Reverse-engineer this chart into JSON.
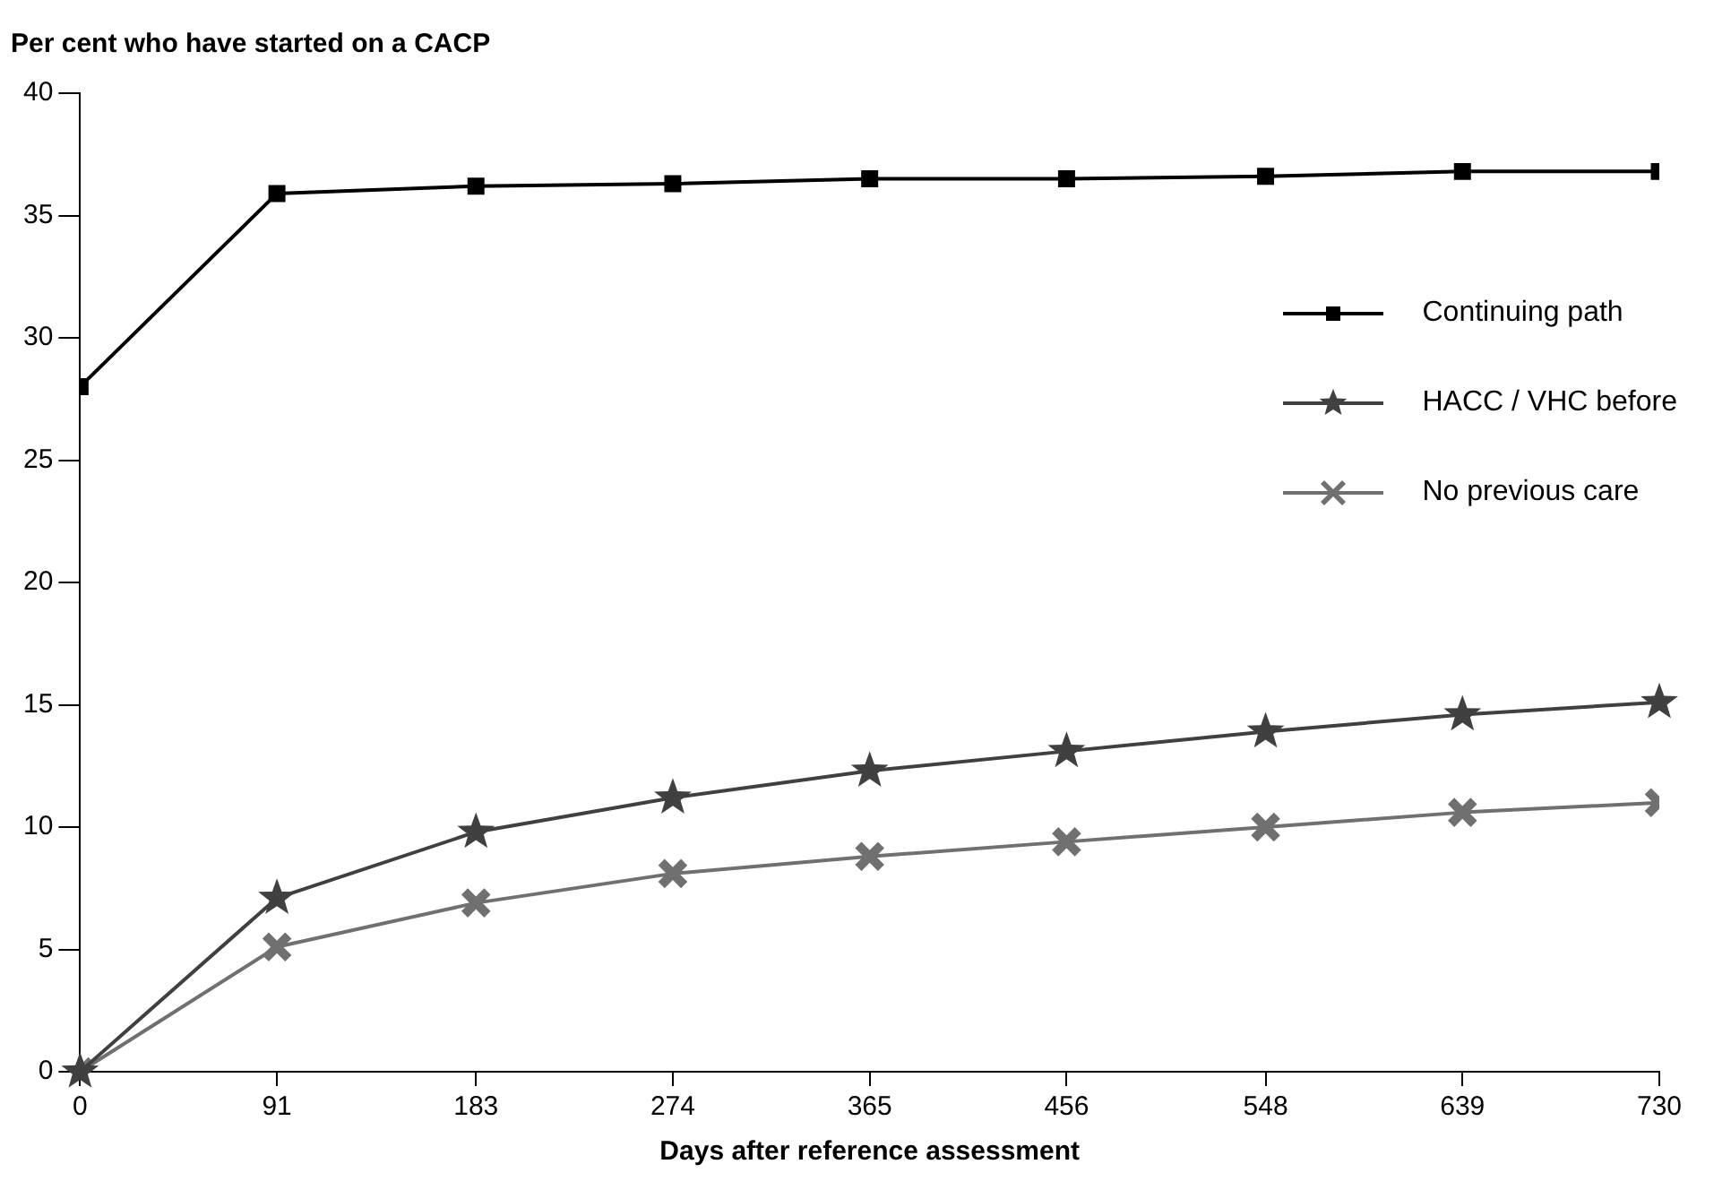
{
  "chart_data": {
    "type": "line",
    "ylabel": "Per cent who have started on a CACP",
    "xlabel": "Days after reference assessment",
    "x": [
      0,
      91,
      183,
      274,
      365,
      456,
      548,
      639,
      730
    ],
    "xlim": [
      0,
      730
    ],
    "xticks": [
      0,
      91,
      183,
      274,
      365,
      456,
      548,
      639,
      730
    ],
    "ylim": [
      0,
      40
    ],
    "yticks": [
      0,
      5,
      10,
      15,
      20,
      25,
      30,
      35,
      40
    ],
    "grid": false,
    "legend": "right",
    "line_style": "solid",
    "series": [
      {
        "name": "Continuing path",
        "color": "#000000",
        "marker": "square",
        "values": [
          28,
          35.9,
          36.2,
          36.3,
          36.5,
          36.5,
          36.6,
          36.8,
          36.8
        ]
      },
      {
        "name": "HACC / VHC before",
        "color": "#404040",
        "marker": "star",
        "values": [
          0,
          7.1,
          9.8,
          11.2,
          12.3,
          13.1,
          13.9,
          14.6,
          15.1
        ]
      },
      {
        "name": "No previous care",
        "color": "#707070",
        "marker": "cross",
        "values": [
          0,
          5.1,
          6.9,
          8.1,
          8.8,
          9.4,
          10,
          10.6,
          11
        ]
      }
    ]
  }
}
